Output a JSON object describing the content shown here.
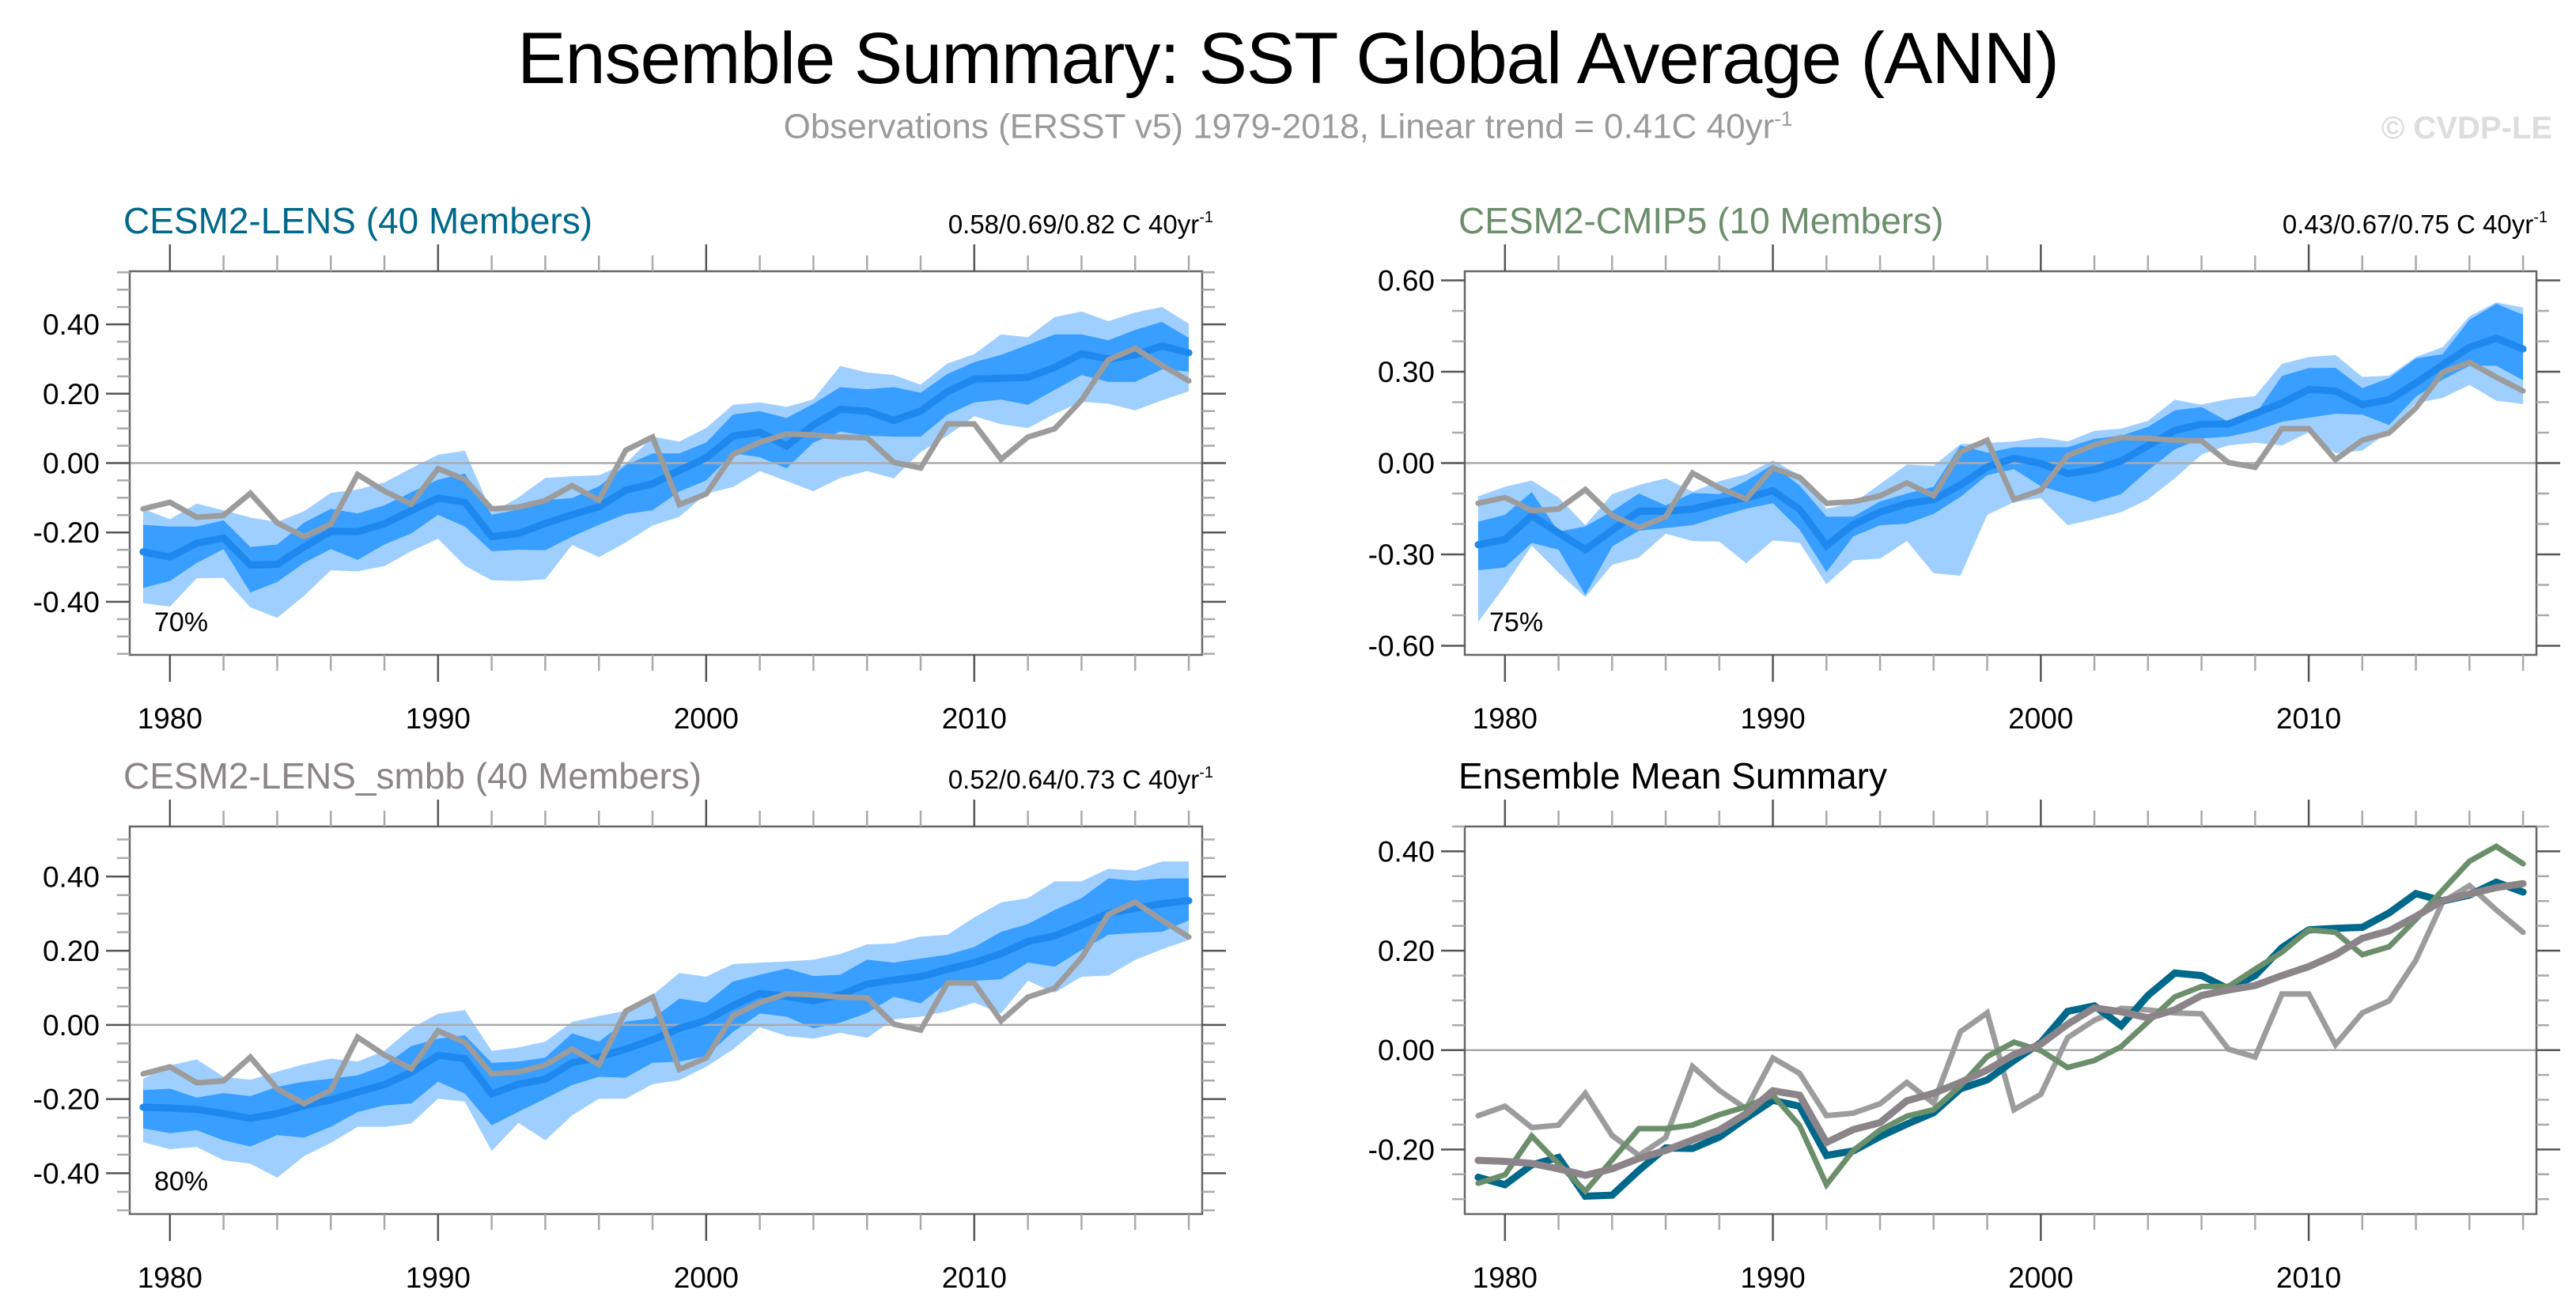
{
  "title": "Ensemble Summary: SST Global Average (ANN)",
  "subtitle": {
    "text": "Observations (ERSST v5) 1979-2018, Linear trend = 0.41C 40yr",
    "superscript": "-1"
  },
  "watermark": "© CVDP-LE",
  "colors": {
    "lens": "#00688b",
    "cmip5": "#6b8e6b",
    "smbb": "#8b8589",
    "obs": "#9c9c9c",
    "outer_band": "#9ecfff",
    "inner_band": "#389eff",
    "median_line": "#1e88ee",
    "zero_line": "#aaaaaa"
  },
  "chart_data": [
    {
      "id": "lens",
      "type": "area",
      "title": "CESM2-LENS (40 Members)",
      "title_color": "#00688b",
      "stats": "0.58/0.69/0.82 C 40yr",
      "stats_superscript": "-1",
      "percent_label": "70%",
      "xlim": [
        1978.5,
        2018.5
      ],
      "ylim": [
        -0.553,
        0.553
      ],
      "yticks": [
        -0.4,
        -0.2,
        0.0,
        0.2,
        0.4
      ],
      "ytick_labels": [
        "-0.40",
        "-0.20",
        "0.00",
        "0.20",
        "0.40"
      ],
      "yminor_step": 0.05,
      "xticks": [
        1980,
        1990,
        2000,
        2010
      ],
      "xtick_labels": [
        "1980",
        "1990",
        "2000",
        "2010"
      ],
      "x": [
        1979,
        1980,
        1981,
        1982,
        1983,
        1984,
        1985,
        1986,
        1987,
        1988,
        1989,
        1990,
        1991,
        1992,
        1993,
        1994,
        1995,
        1996,
        1997,
        1998,
        1999,
        2000,
        2001,
        2002,
        2003,
        2004,
        2005,
        2006,
        2007,
        2008,
        2009,
        2010,
        2011,
        2012,
        2013,
        2014,
        2015,
        2016,
        2017,
        2018
      ],
      "outer_max": [
        -0.132,
        -0.162,
        -0.117,
        -0.136,
        -0.157,
        -0.17,
        -0.139,
        -0.086,
        -0.076,
        -0.056,
        -0.015,
        0.024,
        0.036,
        -0.143,
        -0.099,
        -0.043,
        -0.038,
        -0.035,
        -0.002,
        0.076,
        0.062,
        0.101,
        0.168,
        0.175,
        0.162,
        0.184,
        0.28,
        0.261,
        0.254,
        0.226,
        0.287,
        0.314,
        0.371,
        0.363,
        0.421,
        0.437,
        0.409,
        0.434,
        0.45,
        0.402
      ],
      "inner_hi": [
        -0.178,
        -0.183,
        -0.183,
        -0.165,
        -0.242,
        -0.235,
        -0.172,
        -0.132,
        -0.145,
        -0.122,
        -0.084,
        -0.048,
        -0.03,
        -0.149,
        -0.134,
        -0.107,
        -0.101,
        -0.067,
        -0.006,
        0.028,
        0.028,
        0.059,
        0.14,
        0.15,
        0.13,
        0.171,
        0.219,
        0.213,
        0.219,
        0.203,
        0.257,
        0.291,
        0.312,
        0.341,
        0.371,
        0.371,
        0.354,
        0.384,
        0.407,
        0.361
      ],
      "inner_lo": [
        -0.36,
        -0.34,
        -0.288,
        -0.248,
        -0.373,
        -0.343,
        -0.288,
        -0.248,
        -0.279,
        -0.235,
        -0.203,
        -0.149,
        -0.183,
        -0.254,
        -0.25,
        -0.251,
        -0.212,
        -0.178,
        -0.147,
        -0.136,
        -0.082,
        -0.05,
        0.028,
        0.017,
        -0.015,
        0.059,
        0.091,
        0.079,
        0.076,
        0.076,
        0.14,
        0.175,
        0.183,
        0.168,
        0.211,
        0.254,
        0.234,
        0.234,
        0.27,
        0.264
      ],
      "outer_min": [
        -0.404,
        -0.414,
        -0.332,
        -0.331,
        -0.416,
        -0.446,
        -0.383,
        -0.309,
        -0.312,
        -0.297,
        -0.254,
        -0.218,
        -0.296,
        -0.338,
        -0.34,
        -0.335,
        -0.236,
        -0.271,
        -0.229,
        -0.18,
        -0.155,
        -0.088,
        -0.069,
        -0.023,
        -0.052,
        -0.081,
        -0.043,
        -0.023,
        -0.044,
        0.032,
        0.079,
        0.135,
        0.112,
        0.101,
        0.142,
        0.177,
        0.171,
        0.152,
        0.181,
        0.207
      ],
      "mean": [
        -0.256,
        -0.271,
        -0.231,
        -0.216,
        -0.294,
        -0.292,
        -0.242,
        -0.197,
        -0.198,
        -0.175,
        -0.137,
        -0.101,
        -0.113,
        -0.212,
        -0.203,
        -0.174,
        -0.149,
        -0.126,
        -0.078,
        -0.06,
        -0.021,
        0.015,
        0.078,
        0.089,
        0.049,
        0.11,
        0.155,
        0.15,
        0.123,
        0.15,
        0.206,
        0.242,
        0.245,
        0.247,
        0.276,
        0.315,
        0.3,
        0.312,
        0.338,
        0.318
      ]
    },
    {
      "id": "cmip5",
      "type": "area",
      "title": "CESM2-CMIP5 (10 Members)",
      "title_color": "#6b8e6b",
      "stats": "0.43/0.67/0.75 C 40yr",
      "stats_superscript": "-1",
      "percent_label": "75%",
      "xlim": [
        1978.5,
        2018.5
      ],
      "ylim": [
        -0.63,
        0.63
      ],
      "yticks": [
        -0.6,
        -0.3,
        0.0,
        0.3,
        0.6
      ],
      "ytick_labels": [
        "-0.60",
        "-0.30",
        "0.00",
        "0.30",
        "0.60"
      ],
      "yminor_step": 0.1,
      "xticks": [
        1980,
        1990,
        2000,
        2010
      ],
      "xtick_labels": [
        "1980",
        "1990",
        "2000",
        "2010"
      ],
      "x": [
        1979,
        1980,
        1981,
        1982,
        1983,
        1984,
        1985,
        1986,
        1987,
        1988,
        1989,
        1990,
        1991,
        1992,
        1993,
        1994,
        1995,
        1996,
        1997,
        1998,
        1999,
        2000,
        2001,
        2002,
        2003,
        2004,
        2005,
        2006,
        2007,
        2008,
        2009,
        2010,
        2011,
        2012,
        2013,
        2014,
        2015,
        2016,
        2017,
        2018
      ],
      "outer_max": [
        -0.109,
        -0.078,
        -0.057,
        -0.113,
        -0.204,
        -0.102,
        -0.072,
        -0.05,
        -0.094,
        -0.059,
        -0.037,
        0.009,
        -0.04,
        -0.15,
        -0.132,
        -0.069,
        -0.005,
        -0.009,
        0.062,
        0.066,
        0.071,
        0.084,
        0.071,
        0.106,
        0.113,
        0.139,
        0.208,
        0.192,
        0.21,
        0.22,
        0.326,
        0.348,
        0.355,
        0.283,
        0.287,
        0.348,
        0.381,
        0.482,
        0.528,
        0.511
      ],
      "inner_hi": [
        -0.193,
        -0.17,
        -0.095,
        -0.225,
        -0.208,
        -0.158,
        -0.1,
        -0.139,
        -0.098,
        -0.102,
        -0.059,
        -0.005,
        -0.074,
        -0.176,
        -0.176,
        -0.126,
        -0.1,
        -0.078,
        0.058,
        0.034,
        0.052,
        0.052,
        0.052,
        0.08,
        0.09,
        0.119,
        0.173,
        0.184,
        0.136,
        0.159,
        0.286,
        0.312,
        0.313,
        0.246,
        0.279,
        0.344,
        0.358,
        0.471,
        0.523,
        0.487
      ],
      "inner_lo": [
        -0.352,
        -0.343,
        -0.262,
        -0.284,
        -0.433,
        -0.274,
        -0.222,
        -0.213,
        -0.204,
        -0.176,
        -0.15,
        -0.132,
        -0.219,
        -0.358,
        -0.241,
        -0.204,
        -0.199,
        -0.167,
        -0.111,
        -0.04,
        -0.02,
        -0.076,
        -0.102,
        -0.128,
        -0.102,
        -0.024,
        0.045,
        0.081,
        0.087,
        0.106,
        0.136,
        0.149,
        0.162,
        0.159,
        0.125,
        0.218,
        0.274,
        0.32,
        0.32,
        0.272
      ],
      "outer_min": [
        -0.522,
        -0.403,
        -0.271,
        -0.36,
        -0.44,
        -0.334,
        -0.31,
        -0.232,
        -0.256,
        -0.258,
        -0.329,
        -0.254,
        -0.262,
        -0.398,
        -0.319,
        -0.314,
        -0.256,
        -0.362,
        -0.37,
        -0.17,
        -0.128,
        -0.115,
        -0.204,
        -0.184,
        -0.161,
        -0.119,
        -0.05,
        0.028,
        0.058,
        0.067,
        0.058,
        0.101,
        0.032,
        0.041,
        0.104,
        0.197,
        0.214,
        0.257,
        0.205,
        0.194
      ],
      "mean": [
        -0.268,
        -0.251,
        -0.173,
        -0.229,
        -0.284,
        -0.221,
        -0.158,
        -0.158,
        -0.151,
        -0.13,
        -0.114,
        -0.091,
        -0.152,
        -0.271,
        -0.202,
        -0.161,
        -0.133,
        -0.12,
        -0.072,
        -0.013,
        0.016,
        -0.001,
        -0.035,
        -0.021,
        0.007,
        0.057,
        0.107,
        0.128,
        0.128,
        0.163,
        0.197,
        0.242,
        0.237,
        0.192,
        0.208,
        0.263,
        0.322,
        0.38,
        0.41,
        0.375
      ]
    },
    {
      "id": "smbb",
      "type": "area",
      "title": "CESM2-LENS_smbb (40 Members)",
      "title_color": "#8b8589",
      "stats": "0.52/0.64/0.73 C 40yr",
      "stats_superscript": "-1",
      "percent_label": "80%",
      "xlim": [
        1978.5,
        2018.5
      ],
      "ylim": [
        -0.51,
        0.535
      ],
      "yticks": [
        -0.4,
        -0.2,
        0.0,
        0.2,
        0.4
      ],
      "ytick_labels": [
        "-0.40",
        "-0.20",
        "0.00",
        "0.20",
        "0.40"
      ],
      "yminor_step": 0.05,
      "xticks": [
        1980,
        1990,
        2000,
        2010
      ],
      "xtick_labels": [
        "1980",
        "1990",
        "2000",
        "2010"
      ],
      "x": [
        1979,
        1980,
        1981,
        1982,
        1983,
        1984,
        1985,
        1986,
        1987,
        1988,
        1989,
        1990,
        1991,
        1992,
        1993,
        1994,
        1995,
        1996,
        1997,
        1998,
        1999,
        2000,
        2001,
        2002,
        2003,
        2004,
        2005,
        2006,
        2007,
        2008,
        2009,
        2010,
        2011,
        2012,
        2013,
        2014,
        2015,
        2016,
        2017,
        2018
      ],
      "outer_max": [
        -0.145,
        -0.109,
        -0.093,
        -0.14,
        -0.148,
        -0.126,
        -0.106,
        -0.091,
        -0.099,
        -0.07,
        -0.009,
        0.03,
        0.04,
        -0.07,
        -0.061,
        -0.045,
        0.008,
        0.024,
        0.038,
        0.08,
        0.14,
        0.13,
        0.164,
        0.168,
        0.171,
        0.176,
        0.191,
        0.217,
        0.22,
        0.238,
        0.243,
        0.29,
        0.33,
        0.342,
        0.387,
        0.387,
        0.421,
        0.416,
        0.441,
        0.441
      ],
      "inner_hi": [
        -0.176,
        -0.172,
        -0.196,
        -0.184,
        -0.192,
        -0.167,
        -0.153,
        -0.145,
        -0.136,
        -0.109,
        -0.057,
        -0.037,
        -0.028,
        -0.102,
        -0.099,
        -0.088,
        -0.023,
        -0.045,
        0.009,
        0.017,
        0.071,
        0.06,
        0.117,
        0.135,
        0.152,
        0.132,
        0.135,
        0.176,
        0.168,
        0.179,
        0.189,
        0.21,
        0.251,
        0.272,
        0.31,
        0.342,
        0.395,
        0.389,
        0.395,
        0.395
      ],
      "inner_lo": [
        -0.279,
        -0.292,
        -0.284,
        -0.311,
        -0.328,
        -0.297,
        -0.304,
        -0.275,
        -0.235,
        -0.217,
        -0.212,
        -0.153,
        -0.185,
        -0.271,
        -0.234,
        -0.199,
        -0.162,
        -0.14,
        -0.142,
        -0.102,
        -0.099,
        -0.084,
        -0.019,
        0.031,
        0.022,
        -0.009,
        0.006,
        0.032,
        0.076,
        0.058,
        0.114,
        0.119,
        0.123,
        0.168,
        0.157,
        0.202,
        0.243,
        0.248,
        0.251,
        0.282
      ],
      "outer_min": [
        -0.316,
        -0.335,
        -0.329,
        -0.365,
        -0.374,
        -0.412,
        -0.354,
        -0.318,
        -0.275,
        -0.275,
        -0.266,
        -0.199,
        -0.207,
        -0.34,
        -0.264,
        -0.311,
        -0.244,
        -0.199,
        -0.199,
        -0.16,
        -0.149,
        -0.113,
        -0.066,
        -0.006,
        -0.03,
        -0.037,
        -0.021,
        -0.035,
        0.015,
        0.022,
        0.037,
        0.06,
        0.031,
        0.119,
        0.087,
        0.13,
        0.133,
        0.175,
        0.204,
        0.229
      ],
      "mean": [
        -0.222,
        -0.224,
        -0.228,
        -0.239,
        -0.252,
        -0.239,
        -0.218,
        -0.202,
        -0.181,
        -0.161,
        -0.128,
        -0.082,
        -0.091,
        -0.186,
        -0.16,
        -0.146,
        -0.102,
        -0.087,
        -0.065,
        -0.04,
        -0.009,
        0.012,
        0.052,
        0.085,
        0.077,
        0.065,
        0.081,
        0.11,
        0.121,
        0.13,
        0.15,
        0.168,
        0.192,
        0.225,
        0.24,
        0.269,
        0.301,
        0.314,
        0.327,
        0.335
      ]
    },
    {
      "id": "summary",
      "type": "line",
      "title": "Ensemble Mean Summary",
      "title_color": "#000000",
      "xlim": [
        1978.5,
        2018.5
      ],
      "ylim": [
        -0.33,
        0.45
      ],
      "yticks": [
        -0.2,
        0.0,
        0.2,
        0.4
      ],
      "ytick_labels": [
        "-0.20",
        "0.00",
        "0.20",
        "0.40"
      ],
      "yminor_step": 0.05,
      "xticks": [
        1980,
        1990,
        2000,
        2010
      ],
      "xtick_labels": [
        "1980",
        "1990",
        "2000",
        "2010"
      ],
      "series": [
        {
          "name": "Observations (ERSST v5)",
          "key": "obs"
        },
        {
          "name": "CESM2-LENS",
          "key": "lens"
        },
        {
          "name": "CESM2-CMIP5",
          "key": "cmip5"
        },
        {
          "name": "CESM2-LENS_smbb",
          "key": "smbb"
        }
      ]
    }
  ],
  "observations": {
    "name": "Observations (ERSST v5)",
    "x": [
      1979,
      1980,
      1981,
      1982,
      1983,
      1984,
      1985,
      1986,
      1987,
      1988,
      1989,
      1990,
      1991,
      1992,
      1993,
      1994,
      1995,
      1996,
      1997,
      1998,
      1999,
      2000,
      2001,
      2002,
      2003,
      2004,
      2005,
      2006,
      2007,
      2008,
      2009,
      2010,
      2011,
      2012,
      2013,
      2014,
      2015,
      2016,
      2017,
      2018
    ],
    "values": [
      -0.132,
      -0.113,
      -0.156,
      -0.151,
      -0.087,
      -0.172,
      -0.212,
      -0.176,
      -0.033,
      -0.081,
      -0.118,
      -0.016,
      -0.047,
      -0.132,
      -0.127,
      -0.108,
      -0.065,
      -0.107,
      0.037,
      0.075,
      -0.12,
      -0.089,
      0.025,
      0.06,
      0.084,
      0.081,
      0.075,
      0.073,
      0.002,
      -0.014,
      0.113,
      0.113,
      0.011,
      0.075,
      0.099,
      0.181,
      0.298,
      0.331,
      0.282,
      0.237
    ]
  }
}
